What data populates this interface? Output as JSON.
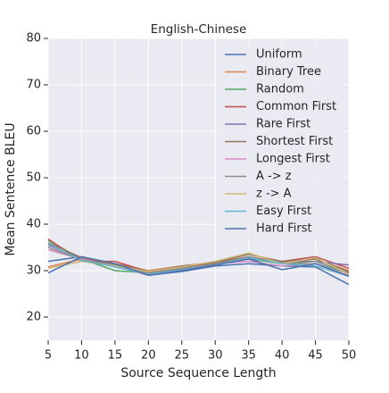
{
  "chart_data": {
    "type": "line",
    "title": "English-Chinese",
    "x_label": "Source Sequence Length",
    "y_label": "Mean Sentence BLEU",
    "x": [
      5,
      10,
      15,
      20,
      25,
      30,
      35,
      40,
      45,
      50
    ],
    "series": [
      {
        "name": "Uniform",
        "color": "#4c72b0",
        "values": [
          32.0,
          33.0,
          31.0,
          29.0,
          29.8,
          31.0,
          31.5,
          31.0,
          30.8,
          27.0
        ]
      },
      {
        "name": "Binary Tree",
        "color": "#dd8452",
        "values": [
          30.8,
          32.5,
          31.5,
          30.0,
          31.0,
          31.8,
          33.0,
          31.8,
          32.5,
          30.0
        ]
      },
      {
        "name": "Random",
        "color": "#55a868",
        "values": [
          36.5,
          32.5,
          30.0,
          29.5,
          30.5,
          31.5,
          32.5,
          31.5,
          31.5,
          29.5
        ]
      },
      {
        "name": "Common First",
        "color": "#c44e52",
        "values": [
          36.8,
          32.0,
          32.0,
          29.8,
          30.5,
          31.8,
          32.8,
          32.0,
          33.0,
          30.5
        ]
      },
      {
        "name": "Rare First",
        "color": "#8172b3",
        "values": [
          35.5,
          32.5,
          31.0,
          29.5,
          30.2,
          31.2,
          32.5,
          32.0,
          32.0,
          31.2
        ]
      },
      {
        "name": "Shortest First",
        "color": "#937860",
        "values": [
          36.0,
          32.8,
          31.5,
          29.8,
          31.0,
          31.8,
          33.5,
          32.0,
          32.5,
          29.8
        ]
      },
      {
        "name": "Longest First",
        "color": "#da8bc3",
        "values": [
          34.5,
          32.5,
          31.0,
          29.0,
          30.0,
          31.5,
          32.0,
          31.0,
          31.5,
          29.0
        ]
      },
      {
        "name": "A -> z",
        "color": "#8c8c8c",
        "values": [
          35.0,
          32.3,
          31.2,
          29.5,
          30.5,
          31.5,
          33.0,
          31.5,
          32.0,
          29.5
        ]
      },
      {
        "name": "z -> A",
        "color": "#ccb974",
        "values": [
          30.5,
          32.0,
          31.0,
          29.8,
          30.8,
          32.0,
          33.8,
          31.5,
          32.8,
          29.2
        ]
      },
      {
        "name": "Easy First",
        "color": "#64b5cd",
        "values": [
          35.8,
          32.2,
          30.8,
          29.2,
          30.2,
          31.2,
          32.8,
          31.5,
          31.0,
          28.8
        ]
      },
      {
        "name": "Hard First",
        "color": "#4c72b0",
        "values": [
          29.5,
          33.0,
          31.5,
          29.0,
          30.0,
          31.2,
          32.5,
          30.2,
          31.5,
          28.8
        ]
      }
    ],
    "xlim": [
      5,
      50
    ],
    "xticks": [
      5,
      10,
      15,
      20,
      25,
      30,
      35,
      40,
      45,
      50
    ],
    "ylim": [
      15,
      80
    ],
    "yticks": [
      20,
      30,
      40,
      50,
      60,
      70,
      80
    ],
    "grid": true,
    "legend": "upper right"
  }
}
